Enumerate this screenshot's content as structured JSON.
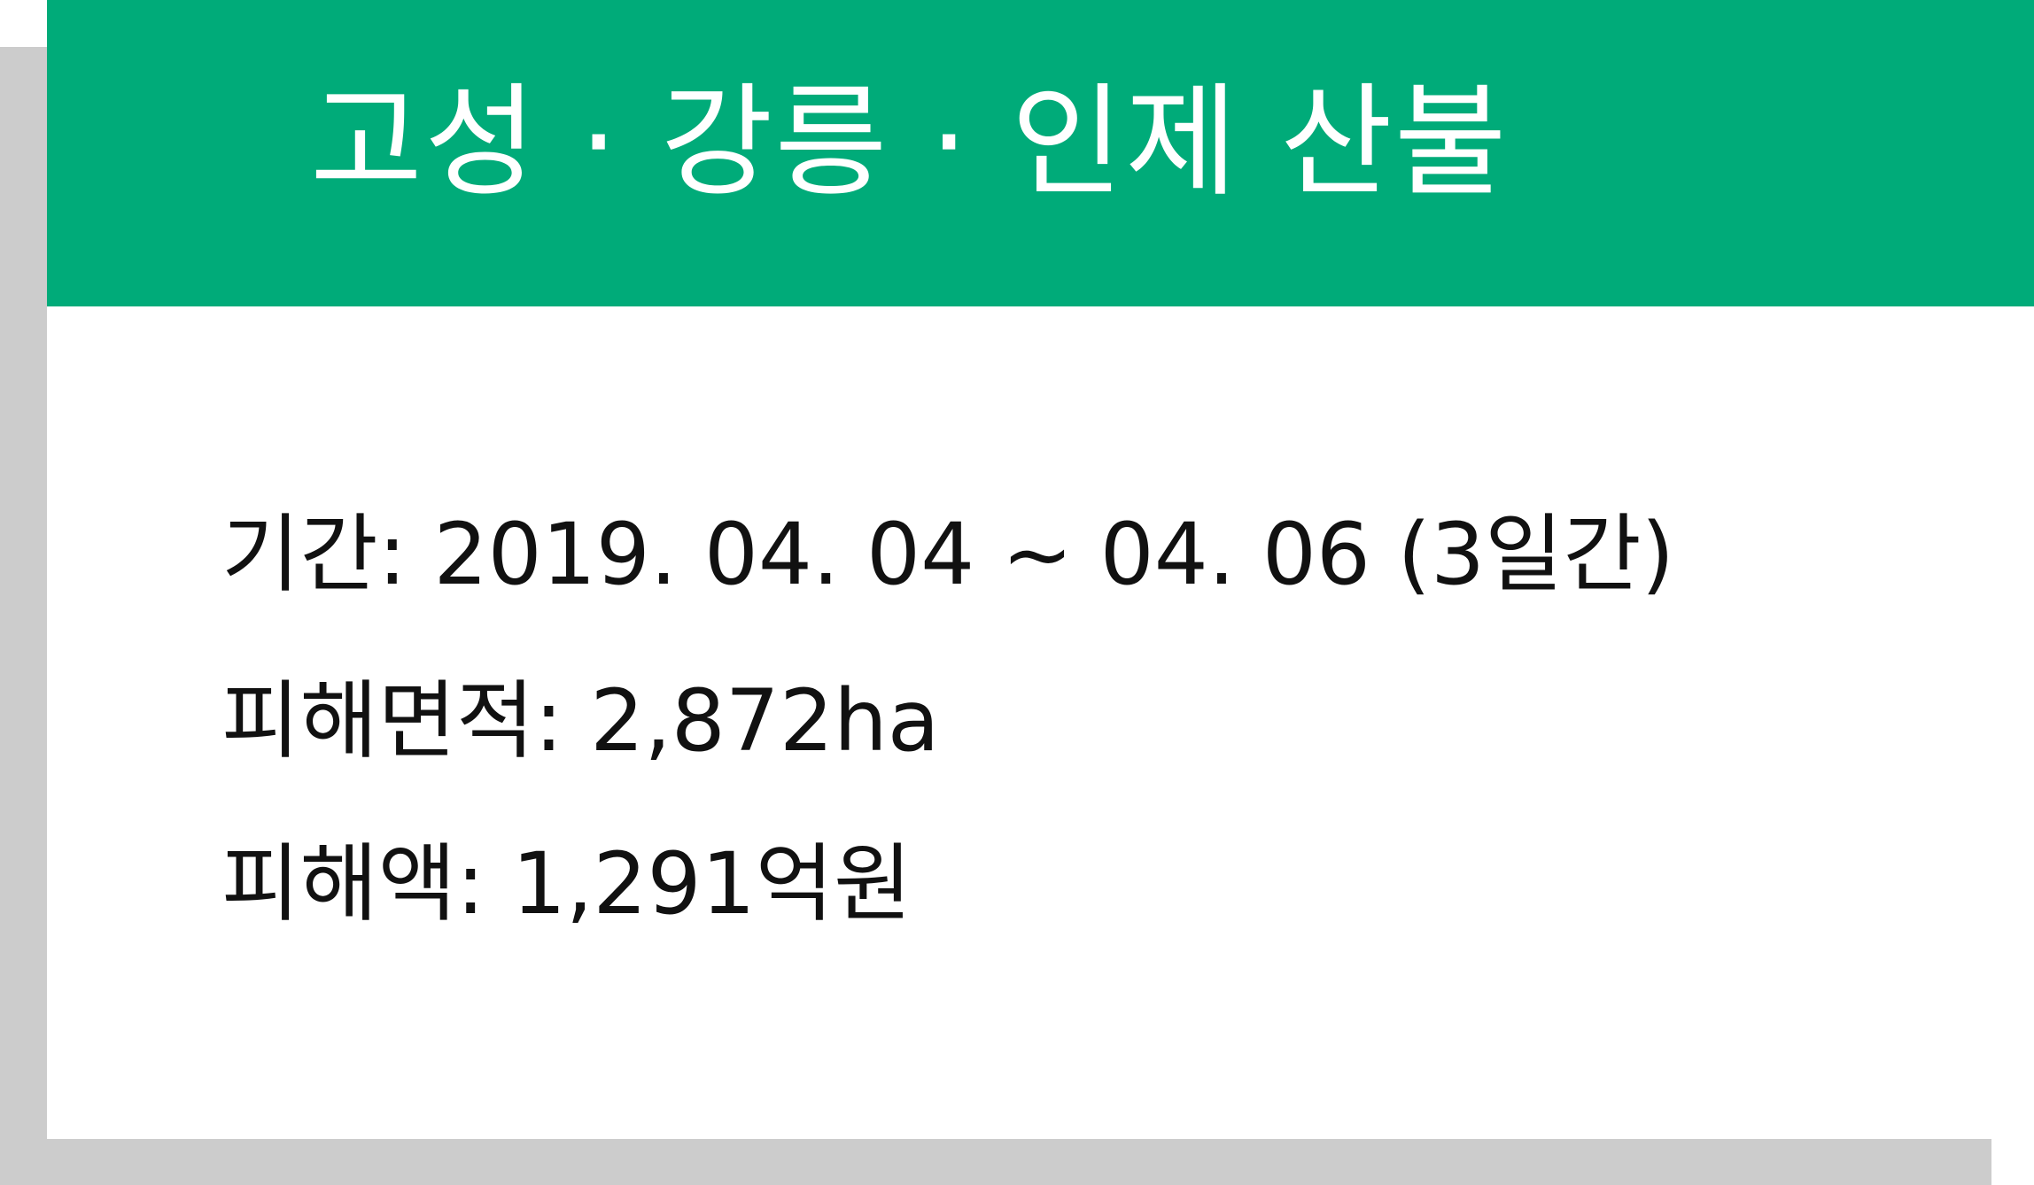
{
  "card": {
    "title": "고성 · 강릉 · 인제 산불"
  },
  "details": [
    {
      "text": "기간: 2019. 04. 04 ~ 04. 06 (3일간)"
    },
    {
      "text": "피해면적: 2,872ha"
    },
    {
      "text": "피해액: 1,291억원"
    }
  ],
  "colors": {
    "header_bg": "#00ab79",
    "header_text": "#ffffff",
    "shadow": "#cccccc",
    "body_text": "#111111"
  }
}
